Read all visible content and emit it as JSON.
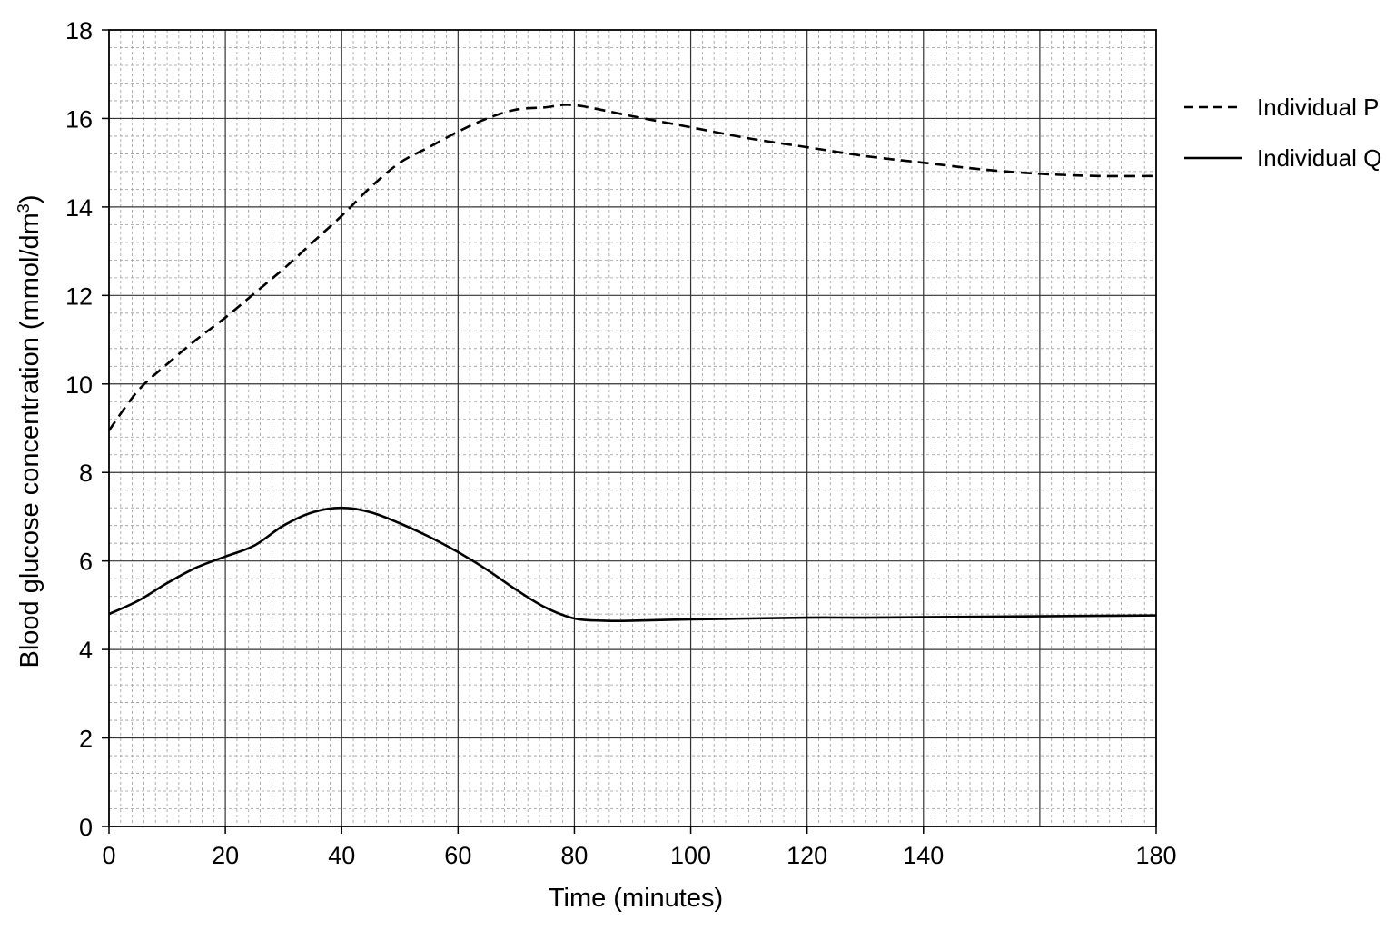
{
  "chart_data": {
    "type": "line",
    "xlabel": "Time (minutes)",
    "ylabel_main": "Blood glucose concentration (mmol/dm",
    "ylabel_sup": "3",
    "ylabel_close": ")",
    "xlim": [
      0,
      180
    ],
    "ylim": [
      0,
      18
    ],
    "x_ticks": [
      "0",
      "20",
      "40",
      "60",
      "80",
      "100",
      "120",
      "140",
      "180"
    ],
    "x_tick_values": [
      0,
      20,
      40,
      60,
      80,
      100,
      120,
      140,
      180
    ],
    "y_ticks": [
      "0",
      "2",
      "4",
      "6",
      "8",
      "10",
      "12",
      "14",
      "16",
      "18"
    ],
    "y_tick_values": [
      0,
      2,
      4,
      6,
      8,
      10,
      12,
      14,
      16,
      18
    ],
    "grid": true,
    "legend_position": "top-right",
    "series": [
      {
        "name": "Individual P",
        "style": "dashed",
        "color": "#000000",
        "x": [
          0,
          5,
          10,
          15,
          20,
          25,
          30,
          35,
          40,
          45,
          50,
          55,
          60,
          65,
          70,
          75,
          80,
          90,
          100,
          110,
          120,
          130,
          140,
          150,
          160,
          170,
          180
        ],
        "y": [
          8.95,
          9.85,
          10.45,
          11.0,
          11.5,
          12.05,
          12.6,
          13.2,
          13.8,
          14.45,
          15.0,
          15.35,
          15.7,
          16.0,
          16.2,
          16.25,
          16.3,
          16.05,
          15.8,
          15.55,
          15.35,
          15.15,
          15.0,
          14.85,
          14.75,
          14.7,
          14.7
        ]
      },
      {
        "name": "Individual Q",
        "style": "solid",
        "color": "#000000",
        "x": [
          0,
          5,
          10,
          15,
          20,
          25,
          30,
          35,
          40,
          45,
          50,
          55,
          60,
          65,
          70,
          75,
          80,
          85,
          90,
          100,
          110,
          120,
          130,
          140,
          150,
          160,
          170,
          180
        ],
        "y": [
          4.8,
          5.1,
          5.5,
          5.85,
          6.1,
          6.35,
          6.8,
          7.1,
          7.2,
          7.1,
          6.85,
          6.55,
          6.2,
          5.8,
          5.35,
          4.95,
          4.7,
          4.65,
          4.65,
          4.68,
          4.7,
          4.72,
          4.72,
          4.73,
          4.74,
          4.75,
          4.76,
          4.77
        ]
      }
    ]
  }
}
